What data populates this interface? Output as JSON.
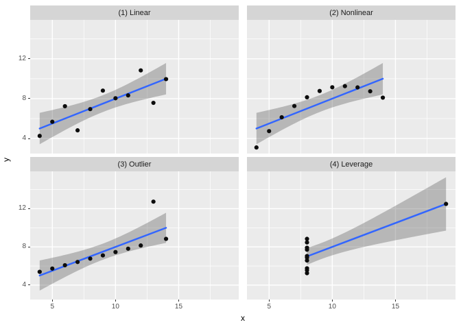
{
  "chart_data": {
    "type": "scatter",
    "title": "",
    "xlabel": "x",
    "ylabel": "y",
    "x_ticks": [
      5,
      10,
      15
    ],
    "y_ticks": [
      4,
      8,
      12
    ],
    "x_minor_ticks": [
      7.5,
      12.5,
      17.5
    ],
    "y_minor_ticks": [
      6,
      10,
      14
    ],
    "xlim": [
      3.25,
      19.75
    ],
    "ylim": [
      2.49,
      15.91
    ],
    "grid": true,
    "legend": "none",
    "facets": [
      {
        "label": "(1) Linear",
        "x": [
          10,
          8,
          13,
          9,
          11,
          14,
          6,
          4,
          12,
          7,
          5
        ],
        "y": [
          8.04,
          6.95,
          7.58,
          8.81,
          8.33,
          9.96,
          7.24,
          4.26,
          10.84,
          4.82,
          5.68
        ]
      },
      {
        "label": "(2) Nonlinear",
        "x": [
          10,
          8,
          13,
          9,
          11,
          14,
          6,
          4,
          12,
          7,
          5
        ],
        "y": [
          9.14,
          8.14,
          8.74,
          8.77,
          9.26,
          8.1,
          6.13,
          3.1,
          9.13,
          7.26,
          4.74
        ]
      },
      {
        "label": "(3) Outlier",
        "x": [
          10,
          8,
          13,
          9,
          11,
          14,
          6,
          4,
          12,
          7,
          5
        ],
        "y": [
          7.46,
          6.77,
          12.74,
          7.11,
          7.81,
          8.84,
          6.08,
          5.39,
          8.15,
          6.42,
          5.73
        ]
      },
      {
        "label": "(4) Leverage",
        "x": [
          8,
          8,
          8,
          8,
          8,
          8,
          8,
          19,
          8,
          8,
          8
        ],
        "y": [
          6.58,
          5.76,
          7.71,
          8.84,
          8.47,
          7.04,
          5.25,
          12.5,
          5.56,
          7.91,
          6.89
        ]
      }
    ],
    "smooth": {
      "method": "lm",
      "ci_level": 0.95,
      "line_color": "#3366FF",
      "ribbon_color": "rgba(100,100,100,0.38)"
    },
    "theme": {
      "panel_bg": "#EBEBEB",
      "grid_color": "#FFFFFF",
      "strip_bg": "#D5D5D5",
      "strip_text_color": "#1a1a1a",
      "point_color": "#0d0d0d",
      "tick_label_color": "#4D4D4D",
      "tick_mark_color": "#333333",
      "axis_title_color": "#000000"
    }
  }
}
